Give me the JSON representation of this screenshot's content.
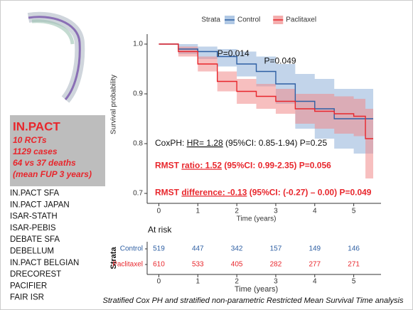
{
  "sidebar": {
    "title": "IN.PACT",
    "facts": [
      "10 RCTs",
      "1129 cases",
      "64 vs 37 deaths",
      "(mean FUP 3 years)"
    ],
    "trials": [
      "IN.PACT SFA",
      "IN.PACT JAPAN",
      "ISAR-STATH",
      "ISAR-PEBIS",
      "DEBATE SFA",
      "DEBELLUM",
      "IN.PACT BELGIAN",
      "DRECOREST",
      "PACIFIER",
      "FAIR ISR"
    ]
  },
  "caption": "Stratified Cox PH and stratified non-parametric Restricted Mean Survival Time analysis",
  "chart_data": {
    "type": "line",
    "step": true,
    "legend_title": "Strata",
    "xlabel": "Time (years)",
    "ylabel": "Survival probability",
    "x": [
      0,
      0.5,
      1,
      1.5,
      2,
      2.5,
      3,
      3.5,
      4,
      4.5,
      5,
      5.3,
      5.5
    ],
    "series": [
      {
        "name": "Control",
        "color": "#2e5fa3",
        "band_color": "#8fb0d8",
        "values": [
          1,
          0.99,
          0.985,
          0.975,
          0.96,
          0.945,
          0.92,
          0.885,
          0.87,
          0.85,
          0.85,
          0.85,
          0.85
        ],
        "upper": [
          1,
          1,
          0.995,
          0.99,
          0.985,
          0.975,
          0.96,
          0.94,
          0.93,
          0.91,
          0.91,
          0.91,
          0.91
        ],
        "lower": [
          1,
          0.98,
          0.97,
          0.955,
          0.935,
          0.915,
          0.88,
          0.83,
          0.81,
          0.79,
          0.78,
          0.78,
          0.78
        ]
      },
      {
        "name": "Paclitaxel",
        "color": "#e8262c",
        "band_color": "#f08a8a",
        "values": [
          1,
          0.985,
          0.96,
          0.925,
          0.905,
          0.895,
          0.885,
          0.87,
          0.865,
          0.86,
          0.855,
          0.81,
          0.81
        ],
        "upper": [
          1,
          0.995,
          0.975,
          0.945,
          0.93,
          0.92,
          0.91,
          0.9,
          0.9,
          0.895,
          0.89,
          0.87,
          0.87
        ],
        "lower": [
          1,
          0.975,
          0.945,
          0.905,
          0.88,
          0.87,
          0.86,
          0.84,
          0.83,
          0.82,
          0.815,
          0.73,
          0.73
        ]
      }
    ],
    "xlim": [
      -0.3,
      5.7
    ],
    "xticks": [
      0,
      1,
      2,
      3,
      4,
      5
    ],
    "ylim": [
      0.68,
      1.02
    ],
    "yticks": [
      0.7,
      0.8,
      0.9,
      {
        "value": 1,
        "label": "1.0"
      }
    ],
    "pvalues": [
      {
        "text": "P=0.014",
        "x": 1.5,
        "y": 0.98
      },
      {
        "text": "P=0.049",
        "x": 2.7,
        "y": 0.965
      }
    ],
    "annotations": [
      {
        "parts": [
          "CoxPH: ",
          "HR= 1.28",
          " (95%CI: 0.85-1.94) P=0.25"
        ],
        "y": 0.8,
        "color": "#111",
        "bold": false
      },
      {
        "parts": [
          "RMST ",
          "ratio: 1.52",
          " (95%CI: 0.99-2.35) P=0.056"
        ],
        "y": 0.755,
        "color": "#e8262c",
        "bold": true
      },
      {
        "parts": [
          "RMST ",
          "difference: -0.13",
          " (95%CI: (-0.27) – 0.00) P=0.049"
        ],
        "y": 0.701,
        "color": "#e8262c",
        "bold": true
      }
    ],
    "risk_table": {
      "title": "At risk",
      "strata_label": "Strata",
      "times": [
        0,
        1,
        2,
        3,
        4,
        5
      ],
      "rows": [
        {
          "name": "Control",
          "values": [
            519,
            447,
            342,
            157,
            149,
            146
          ]
        },
        {
          "name": "Paclitaxel",
          "values": [
            610,
            533,
            405,
            282,
            277,
            271
          ]
        }
      ]
    }
  }
}
